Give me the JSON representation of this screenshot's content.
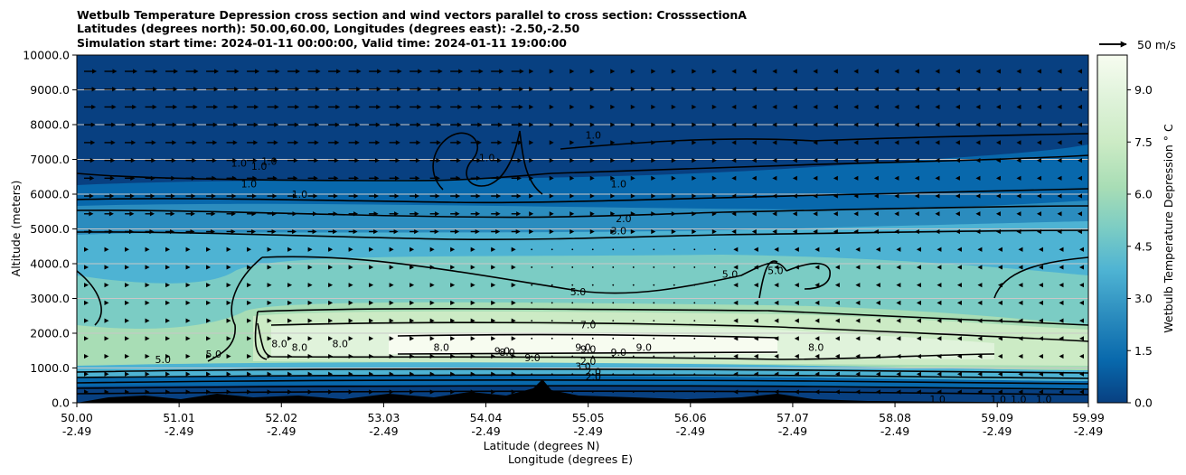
{
  "chart_data": {
    "type": "contour",
    "title_lines": [
      "Wetbulb Temperature Depression cross section and wind vectors parallel to cross section: CrosssectionA",
      "Latitudes (degrees north): 50.00,60.00, Longitudes (degrees east): -2.50,-2.50",
      "Simulation start time: 2024-01-11 00:00:00, Valid time: 2024-01-11 19:00:00"
    ],
    "ylabel": "Altitude (meters)",
    "xlabel_lines": [
      "Latitude (degrees N)",
      "Longitude (degrees E)"
    ],
    "ylim": [
      0,
      10000
    ],
    "xlim": [
      50.0,
      59.99
    ],
    "y_ticks": [
      "0.0",
      "1000.0",
      "2000.0",
      "3000.0",
      "4000.0",
      "5000.0",
      "6000.0",
      "7000.0",
      "8000.0",
      "9000.0",
      "10000.0"
    ],
    "y_tick_values": [
      0,
      1000,
      2000,
      3000,
      4000,
      5000,
      6000,
      7000,
      8000,
      9000,
      10000
    ],
    "x_ticks": [
      {
        "lat": "50.00",
        "lon": "-2.49",
        "value": 50.0
      },
      {
        "lat": "51.01",
        "lon": "-2.49",
        "value": 51.01
      },
      {
        "lat": "52.02",
        "lon": "-2.49",
        "value": 52.02
      },
      {
        "lat": "53.03",
        "lon": "-2.49",
        "value": 53.03
      },
      {
        "lat": "54.04",
        "lon": "-2.49",
        "value": 54.04
      },
      {
        "lat": "55.05",
        "lon": "-2.49",
        "value": 55.05
      },
      {
        "lat": "56.06",
        "lon": "-2.49",
        "value": 56.06
      },
      {
        "lat": "57.07",
        "lon": "-2.49",
        "value": 57.07
      },
      {
        "lat": "58.08",
        "lon": "-2.49",
        "value": 58.08
      },
      {
        "lat": "59.09",
        "lon": "-2.49",
        "value": 59.09
      },
      {
        "lat": "59.99",
        "lon": "-2.49",
        "value": 59.99
      }
    ],
    "colorbar": {
      "label": "Wetbulb Temperature Depression ° C",
      "range": [
        0,
        10
      ],
      "ticks": [
        "0.0",
        "1.5",
        "3.0",
        "4.5",
        "6.0",
        "7.5",
        "9.0"
      ],
      "tick_values": [
        0,
        1.5,
        3.0,
        4.5,
        6.0,
        7.5,
        9.0
      ],
      "colormap": "GnBu_r",
      "colors": [
        "#084081",
        "#0868ac",
        "#2b8cbe",
        "#4eb3d3",
        "#7bccc4",
        "#a8ddb5",
        "#ccebc5",
        "#e0f3db",
        "#f7fcf0"
      ]
    },
    "quiver_key": "50 m/s",
    "grid": "horizontal",
    "contour_levels": [
      1.0,
      2.0,
      3.0,
      5.0,
      7.0,
      8.0,
      9.0
    ],
    "contour_labels": [
      {
        "text": "1.0",
        "lat": 51.6,
        "alt": 6900
      },
      {
        "text": "1.0",
        "lat": 51.7,
        "alt": 6300
      },
      {
        "text": "1.0",
        "lat": 51.8,
        "alt": 6800
      },
      {
        "text": "1.0",
        "lat": 51.9,
        "alt": 6950
      },
      {
        "text": "1.0",
        "lat": 52.2,
        "alt": 6000
      },
      {
        "text": "1.0",
        "lat": 54.05,
        "alt": 7050
      },
      {
        "text": "1.0",
        "lat": 55.1,
        "alt": 7700
      },
      {
        "text": "1.0",
        "lat": 55.35,
        "alt": 6300
      },
      {
        "text": "2.0",
        "lat": 55.4,
        "alt": 5300
      },
      {
        "text": "3.0",
        "lat": 55.35,
        "alt": 4950
      },
      {
        "text": "5.0",
        "lat": 54.95,
        "alt": 3200
      },
      {
        "text": "5.0",
        "lat": 56.45,
        "alt": 3700
      },
      {
        "text": "5.0",
        "lat": 56.9,
        "alt": 3800
      },
      {
        "text": "5.0",
        "lat": 50.85,
        "alt": 1250
      },
      {
        "text": "5.0",
        "lat": 51.35,
        "alt": 1400
      },
      {
        "text": "7.0",
        "lat": 55.05,
        "alt": 2250
      },
      {
        "text": "8.0",
        "lat": 52.0,
        "alt": 1700
      },
      {
        "text": "8.0",
        "lat": 52.2,
        "alt": 1600
      },
      {
        "text": "8.0",
        "lat": 52.6,
        "alt": 1700
      },
      {
        "text": "8.0",
        "lat": 53.6,
        "alt": 1600
      },
      {
        "text": "8.0",
        "lat": 54.25,
        "alt": 1450
      },
      {
        "text": "8.0",
        "lat": 57.3,
        "alt": 1600
      },
      {
        "text": "9.0",
        "lat": 54.2,
        "alt": 1500
      },
      {
        "text": "9.0",
        "lat": 54.5,
        "alt": 1300
      },
      {
        "text": "9.0",
        "lat": 55.0,
        "alt": 1600
      },
      {
        "text": "9.0",
        "lat": 55.05,
        "alt": 1550
      },
      {
        "text": "9.0",
        "lat": 55.35,
        "alt": 1450
      },
      {
        "text": "9.0",
        "lat": 55.6,
        "alt": 1600
      },
      {
        "text": "2.0",
        "lat": 55.05,
        "alt": 1200
      },
      {
        "text": "2.0",
        "lat": 55.1,
        "alt": 750
      },
      {
        "text": "3.0",
        "lat": 55.0,
        "alt": 1050
      },
      {
        "text": "2.0",
        "lat": 55.1,
        "alt": 900
      },
      {
        "text": "1.0",
        "lat": 58.5,
        "alt": 100
      },
      {
        "text": "1.0",
        "lat": 59.1,
        "alt": 100
      },
      {
        "text": "1.0",
        "lat": 59.3,
        "alt": 100
      },
      {
        "text": "1.0",
        "lat": 59.55,
        "alt": 100
      }
    ]
  }
}
